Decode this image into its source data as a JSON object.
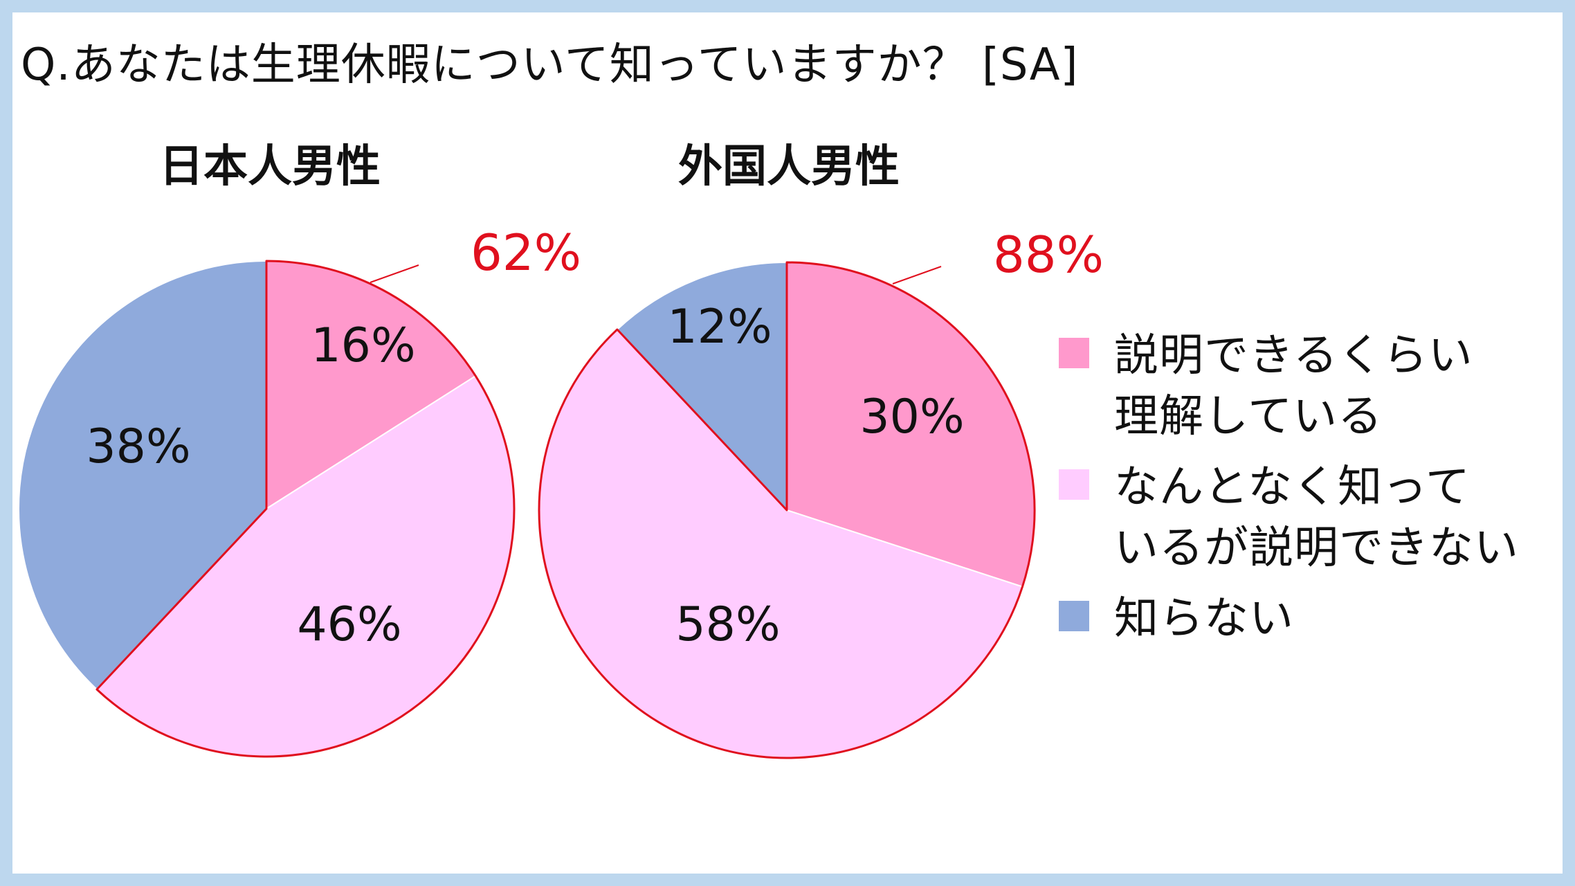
{
  "question": "Q.あなたは生理休暇について知っていますか？ [SA]",
  "chart_data": [
    {
      "type": "pie",
      "title": "日本人男性",
      "categories": [
        "説明できるくらい理解している",
        "なんとなく知っているが説明できない",
        "知らない"
      ],
      "values": [
        16,
        46,
        38
      ],
      "labels": [
        "16%",
        "46%",
        "38%"
      ],
      "colors": [
        "#ff99cc",
        "#ffccff",
        "#8faadc"
      ],
      "callout": "62%"
    },
    {
      "type": "pie",
      "title": "外国人男性",
      "categories": [
        "説明できるくらい理解している",
        "なんとなく知っているが説明できない",
        "知らない"
      ],
      "values": [
        30,
        58,
        12
      ],
      "labels": [
        "30%",
        "58%",
        "12%"
      ],
      "colors": [
        "#ff99cc",
        "#ffccff",
        "#8faadc"
      ],
      "callout": "88%"
    }
  ],
  "legend": [
    {
      "label": "説明できるくらい\n理解している",
      "color": "#ff99cc"
    },
    {
      "label": "なんとなく知って\nいるが説明できない",
      "color": "#ffccff"
    },
    {
      "label": "知らない",
      "color": "#8faadc"
    }
  ],
  "highlight_color": "#e0101e"
}
